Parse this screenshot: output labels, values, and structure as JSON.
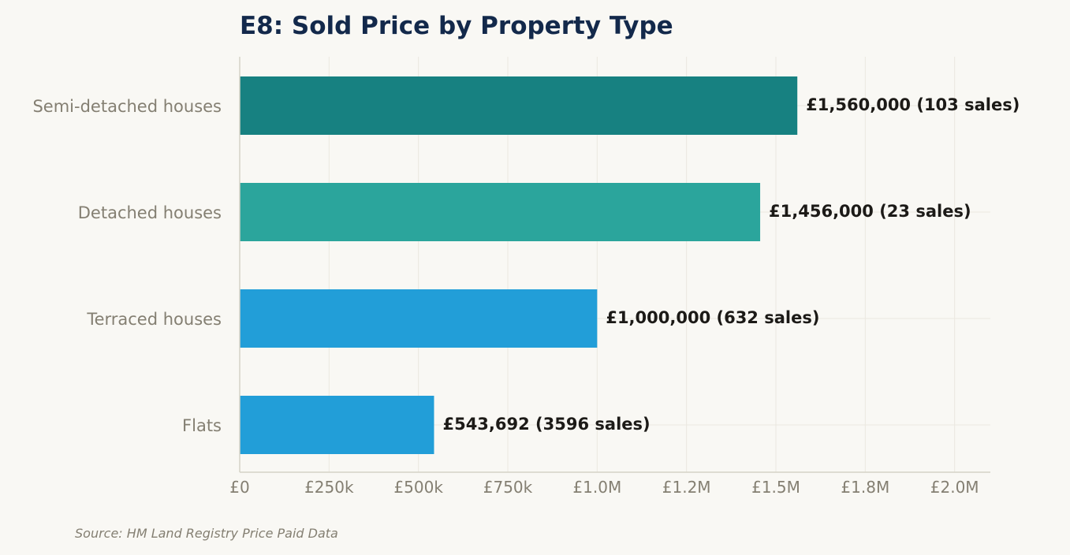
{
  "chart_data": {
    "type": "bar",
    "orientation": "horizontal",
    "title": "E8: Sold Price by Property Type",
    "categories": [
      "Semi-detached houses",
      "Detached houses",
      "Terraced houses",
      "Flats"
    ],
    "values": [
      1560000,
      1456000,
      1000000,
      543692
    ],
    "sales": [
      103,
      23,
      632,
      3596
    ],
    "value_labels": [
      "£1,560,000  (103 sales)",
      "£1,456,000  (23 sales)",
      "£1,000,000  (632 sales)",
      "£543,692  (3596 sales)"
    ],
    "bar_colors": [
      "#178181",
      "#2ba59c",
      "#229ed8",
      "#229ed8"
    ],
    "xlim": [
      0,
      2100000
    ],
    "x_ticks": [
      0,
      250000,
      500000,
      750000,
      1000000,
      1250000,
      1500000,
      1750000,
      2000000
    ],
    "x_tick_labels": [
      "£0",
      "£250k",
      "£500k",
      "£750k",
      "£1.0M",
      "£1.2M",
      "£1.5M",
      "£1.8M",
      "£2.0M"
    ],
    "grid": true,
    "source": "Source: HM Land Registry Price Paid Data"
  }
}
